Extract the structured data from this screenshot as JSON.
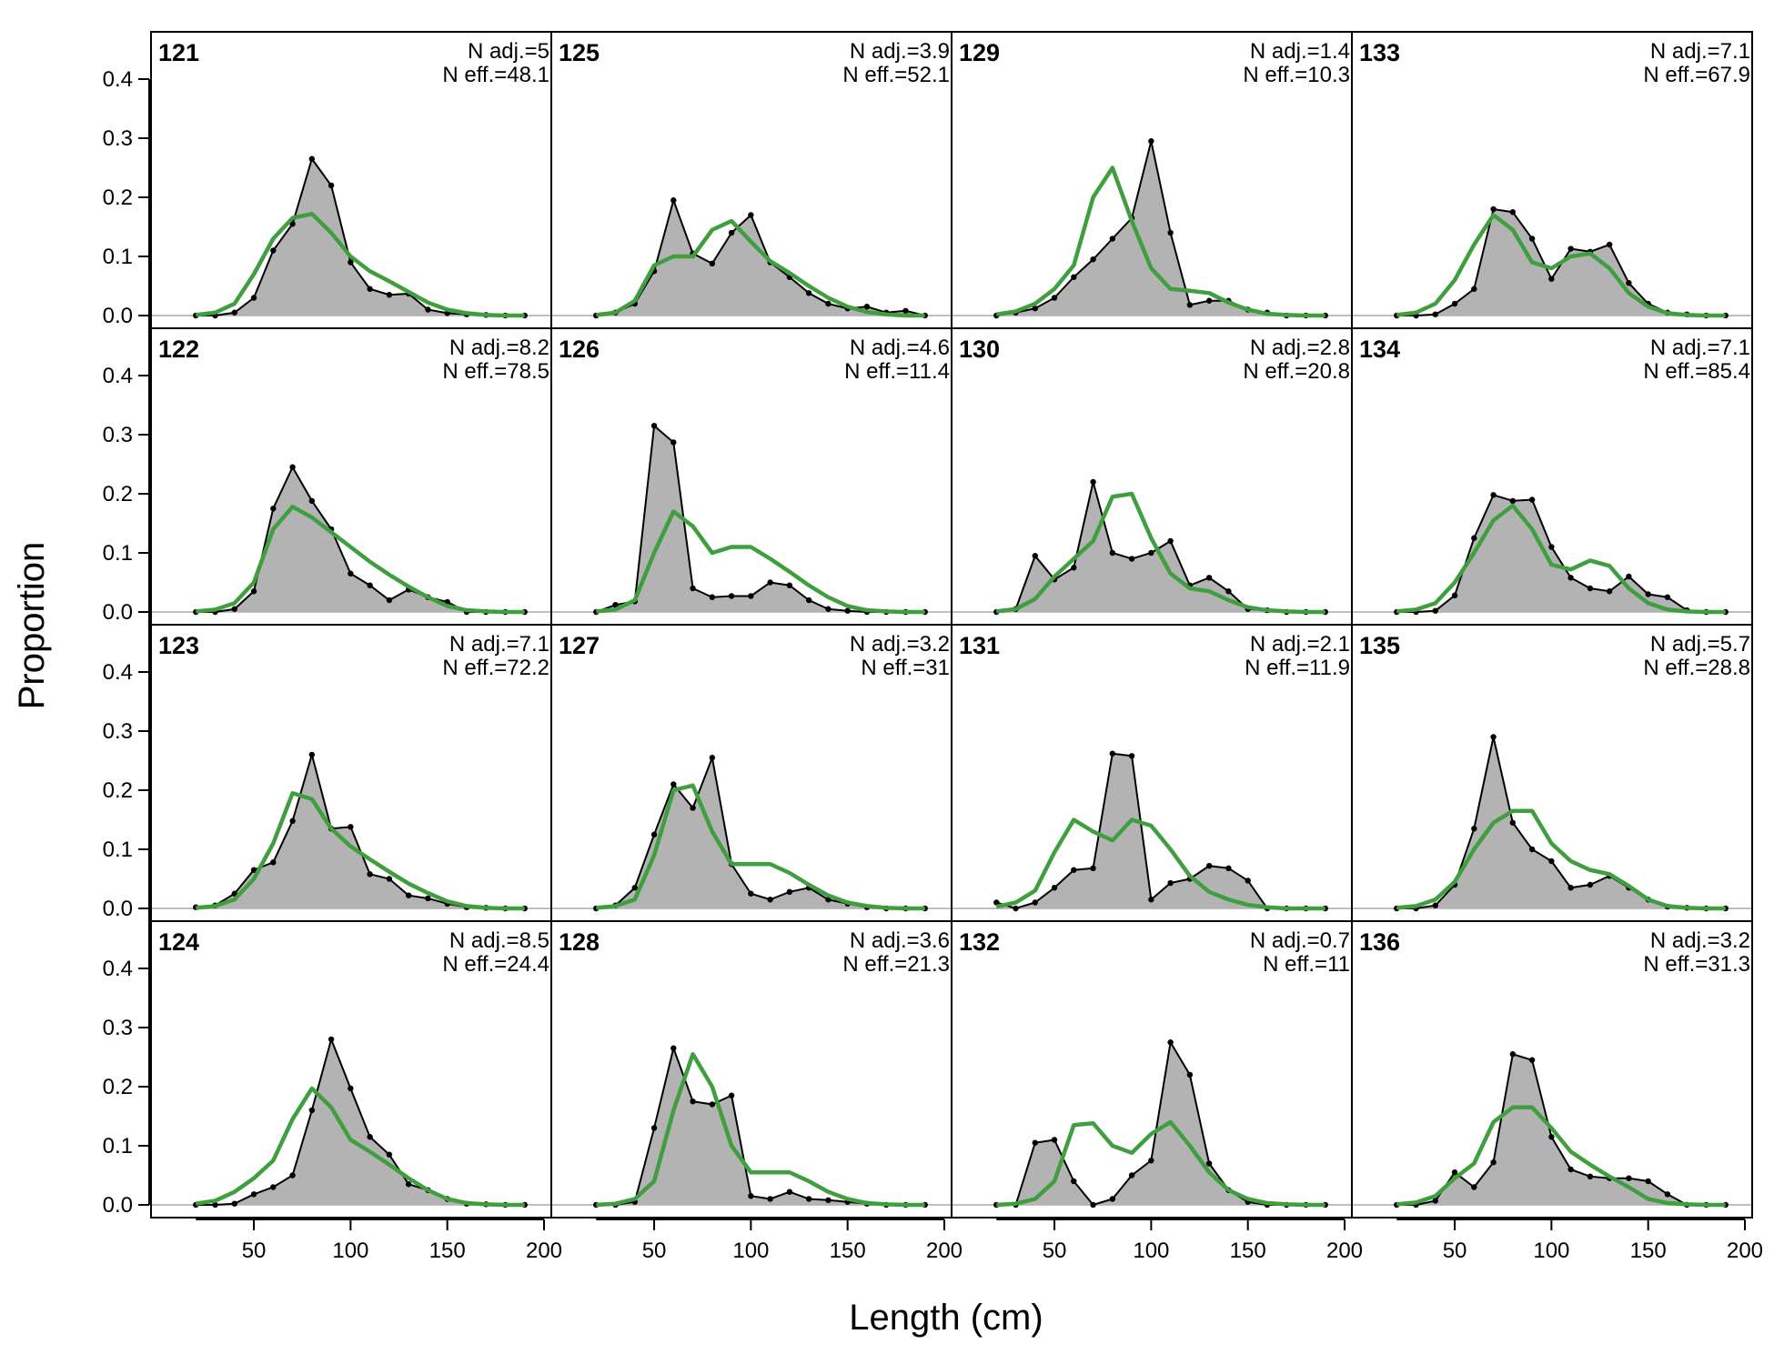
{
  "chart_data": {
    "type": "area",
    "xlabel": "Length (cm)",
    "ylabel": "Proportion",
    "xlim": [
      10,
      200
    ],
    "ylim": [
      0,
      0.48
    ],
    "x_ticks": [
      50,
      100,
      150,
      200
    ],
    "y_ticks": [
      0.0,
      0.1,
      0.2,
      0.3,
      0.4
    ],
    "y_tick_labels": [
      "0.0",
      "0.1",
      "0.2",
      "0.3",
      "0.4"
    ],
    "x": [
      20,
      30,
      40,
      50,
      60,
      70,
      80,
      90,
      100,
      110,
      120,
      130,
      140,
      150,
      160,
      170,
      180,
      190
    ],
    "series_styles": {
      "observed": {
        "fill": "#b3b3b3",
        "line": "#000000"
      },
      "expected": {
        "line": "#3f9f3f"
      }
    },
    "layout": {
      "rows": 4,
      "cols": 4,
      "order": "column-major"
    },
    "panels": [
      {
        "id": "121",
        "n_adj": "N adj.=5",
        "n_eff": "N eff.=48.1",
        "observed": [
          0,
          0,
          0.005,
          0.03,
          0.11,
          0.155,
          0.265,
          0.22,
          0.09,
          0.045,
          0.035,
          0.037,
          0.01,
          0.004,
          0.002,
          0.001,
          0,
          0
        ],
        "expected": [
          0.001,
          0.005,
          0.02,
          0.07,
          0.13,
          0.165,
          0.172,
          0.14,
          0.1,
          0.075,
          0.058,
          0.04,
          0.022,
          0.01,
          0.004,
          0.001,
          0,
          0
        ]
      },
      {
        "id": "122",
        "n_adj": "N adj.=8.2",
        "n_eff": "N eff.=78.5",
        "observed": [
          0,
          0,
          0.005,
          0.035,
          0.175,
          0.245,
          0.188,
          0.14,
          0.065,
          0.045,
          0.02,
          0.038,
          0.025,
          0.017,
          0,
          0,
          0,
          0
        ],
        "expected": [
          0.001,
          0.004,
          0.015,
          0.05,
          0.14,
          0.178,
          0.16,
          0.135,
          0.11,
          0.085,
          0.063,
          0.043,
          0.025,
          0.01,
          0.003,
          0.001,
          0,
          0
        ]
      },
      {
        "id": "123",
        "n_adj": "N adj.=7.1",
        "n_eff": "N eff.=72.2",
        "observed": [
          0.002,
          0.005,
          0.025,
          0.065,
          0.078,
          0.148,
          0.26,
          0.135,
          0.138,
          0.058,
          0.05,
          0.022,
          0.017,
          0.008,
          0.002,
          0.001,
          0,
          0
        ],
        "expected": [
          0.001,
          0.004,
          0.015,
          0.05,
          0.11,
          0.195,
          0.185,
          0.135,
          0.105,
          0.083,
          0.062,
          0.042,
          0.026,
          0.012,
          0.004,
          0.001,
          0,
          0
        ]
      },
      {
        "id": "124",
        "n_adj": "N adj.=8.5",
        "n_eff": "N eff.=24.4",
        "observed": [
          0,
          0,
          0.002,
          0.018,
          0.03,
          0.05,
          0.16,
          0.28,
          0.197,
          0.115,
          0.085,
          0.035,
          0.025,
          0.01,
          0.002,
          0.001,
          0,
          0
        ],
        "expected": [
          0.002,
          0.007,
          0.022,
          0.045,
          0.075,
          0.145,
          0.197,
          0.165,
          0.11,
          0.09,
          0.068,
          0.045,
          0.025,
          0.01,
          0.003,
          0.001,
          0,
          0
        ]
      },
      {
        "id": "125",
        "n_adj": "N adj.=3.9",
        "n_eff": "N eff.=52.1",
        "observed": [
          0,
          0.005,
          0.02,
          0.075,
          0.195,
          0.105,
          0.088,
          0.14,
          0.17,
          0.09,
          0.065,
          0.038,
          0.02,
          0.012,
          0.015,
          0.005,
          0.008,
          0
        ],
        "expected": [
          0.001,
          0.005,
          0.025,
          0.085,
          0.1,
          0.1,
          0.145,
          0.16,
          0.125,
          0.092,
          0.072,
          0.05,
          0.03,
          0.015,
          0.006,
          0.002,
          0,
          0
        ]
      },
      {
        "id": "126",
        "n_adj": "N adj.=4.6",
        "n_eff": "N eff.=11.4",
        "observed": [
          0,
          0.012,
          0.018,
          0.315,
          0.287,
          0.04,
          0.025,
          0.027,
          0.027,
          0.05,
          0.045,
          0.02,
          0.005,
          0.002,
          0,
          0,
          0,
          0
        ],
        "expected": [
          0.001,
          0.004,
          0.02,
          0.1,
          0.17,
          0.145,
          0.1,
          0.11,
          0.11,
          0.09,
          0.068,
          0.045,
          0.025,
          0.01,
          0.003,
          0.001,
          0,
          0
        ]
      },
      {
        "id": "127",
        "n_adj": "N adj.=3.2",
        "n_eff": "N eff.=31",
        "observed": [
          0,
          0.005,
          0.035,
          0.125,
          0.21,
          0.17,
          0.255,
          0.075,
          0.025,
          0.015,
          0.028,
          0.035,
          0.015,
          0.008,
          0.002,
          0,
          0,
          0
        ],
        "expected": [
          0.001,
          0.004,
          0.015,
          0.09,
          0.2,
          0.208,
          0.13,
          0.075,
          0.075,
          0.075,
          0.06,
          0.04,
          0.022,
          0.01,
          0.004,
          0.001,
          0,
          0
        ]
      },
      {
        "id": "128",
        "n_adj": "N adj.=3.6",
        "n_eff": "N eff.=21.3",
        "observed": [
          0,
          0,
          0.005,
          0.13,
          0.265,
          0.175,
          0.17,
          0.185,
          0.015,
          0.01,
          0.022,
          0.01,
          0.008,
          0.005,
          0.002,
          0,
          0,
          0
        ],
        "expected": [
          0,
          0.002,
          0.01,
          0.04,
          0.16,
          0.255,
          0.2,
          0.1,
          0.055,
          0.055,
          0.055,
          0.04,
          0.022,
          0.01,
          0.003,
          0.001,
          0,
          0
        ]
      },
      {
        "id": "129",
        "n_adj": "N adj.=1.4",
        "n_eff": "N eff.=10.3",
        "observed": [
          0,
          0.005,
          0.012,
          0.03,
          0.065,
          0.095,
          0.13,
          0.165,
          0.295,
          0.14,
          0.018,
          0.025,
          0.025,
          0.01,
          0.005,
          0,
          0,
          0
        ],
        "expected": [
          0.002,
          0.007,
          0.02,
          0.045,
          0.085,
          0.2,
          0.25,
          0.16,
          0.08,
          0.045,
          0.042,
          0.038,
          0.022,
          0.01,
          0.003,
          0.001,
          0,
          0
        ]
      },
      {
        "id": "130",
        "n_adj": "N adj.=2.8",
        "n_eff": "N eff.=20.8",
        "observed": [
          0,
          0.005,
          0.095,
          0.055,
          0.075,
          0.22,
          0.1,
          0.09,
          0.1,
          0.12,
          0.045,
          0.058,
          0.035,
          0.005,
          0.003,
          0,
          0,
          0
        ],
        "expected": [
          0.001,
          0.005,
          0.022,
          0.06,
          0.09,
          0.12,
          0.195,
          0.2,
          0.125,
          0.065,
          0.04,
          0.035,
          0.02,
          0.008,
          0.003,
          0.001,
          0,
          0
        ]
      },
      {
        "id": "131",
        "n_adj": "N adj.=2.1",
        "n_eff": "N eff.=11.9",
        "observed": [
          0.01,
          0,
          0.01,
          0.035,
          0.065,
          0.068,
          0.262,
          0.258,
          0.015,
          0.043,
          0.05,
          0.072,
          0.068,
          0.047,
          0,
          0,
          0,
          0
        ],
        "expected": [
          0.003,
          0.01,
          0.03,
          0.095,
          0.15,
          0.13,
          0.115,
          0.15,
          0.14,
          0.1,
          0.055,
          0.028,
          0.015,
          0.006,
          0.002,
          0,
          0,
          0
        ]
      },
      {
        "id": "132",
        "n_adj": "N adj.=0.7",
        "n_eff": "N eff.=11",
        "observed": [
          0,
          0,
          0.105,
          0.11,
          0.04,
          0,
          0.01,
          0.05,
          0.075,
          0.275,
          0.22,
          0.07,
          0.025,
          0.005,
          0,
          0,
          0,
          0
        ],
        "expected": [
          0,
          0.002,
          0.01,
          0.04,
          0.135,
          0.138,
          0.1,
          0.088,
          0.12,
          0.14,
          0.1,
          0.055,
          0.025,
          0.01,
          0.003,
          0.001,
          0,
          0
        ]
      },
      {
        "id": "133",
        "n_adj": "N adj.=7.1",
        "n_eff": "N eff.=67.9",
        "observed": [
          0,
          0,
          0.002,
          0.02,
          0.045,
          0.18,
          0.175,
          0.13,
          0.062,
          0.113,
          0.108,
          0.12,
          0.055,
          0.02,
          0.005,
          0.002,
          0,
          0
        ],
        "expected": [
          0.001,
          0.005,
          0.02,
          0.06,
          0.12,
          0.17,
          0.145,
          0.09,
          0.08,
          0.1,
          0.105,
          0.08,
          0.038,
          0.015,
          0.004,
          0.001,
          0,
          0
        ]
      },
      {
        "id": "134",
        "n_adj": "N adj.=7.1",
        "n_eff": "N eff.=85.4",
        "observed": [
          0,
          0,
          0.002,
          0.028,
          0.125,
          0.198,
          0.188,
          0.19,
          0.11,
          0.058,
          0.04,
          0.035,
          0.06,
          0.03,
          0.025,
          0.003,
          0,
          0
        ],
        "expected": [
          0.001,
          0.004,
          0.015,
          0.05,
          0.1,
          0.155,
          0.18,
          0.14,
          0.08,
          0.072,
          0.087,
          0.078,
          0.04,
          0.015,
          0.004,
          0.001,
          0,
          0
        ]
      },
      {
        "id": "135",
        "n_adj": "N adj.=5.7",
        "n_eff": "N eff.=28.8",
        "observed": [
          0,
          0,
          0.005,
          0.04,
          0.135,
          0.29,
          0.145,
          0.1,
          0.08,
          0.035,
          0.04,
          0.055,
          0.035,
          0.015,
          0.003,
          0.001,
          0,
          0
        ],
        "expected": [
          0.001,
          0.004,
          0.015,
          0.045,
          0.1,
          0.145,
          0.165,
          0.165,
          0.11,
          0.08,
          0.065,
          0.058,
          0.038,
          0.015,
          0.004,
          0.001,
          0,
          0
        ]
      },
      {
        "id": "136",
        "n_adj": "N adj.=3.2",
        "n_eff": "N eff.=31.3",
        "observed": [
          0,
          0,
          0.007,
          0.055,
          0.03,
          0.072,
          0.255,
          0.245,
          0.115,
          0.06,
          0.048,
          0.045,
          0.045,
          0.04,
          0.018,
          0,
          0,
          0
        ],
        "expected": [
          0.001,
          0.004,
          0.015,
          0.045,
          0.07,
          0.14,
          0.165,
          0.165,
          0.13,
          0.09,
          0.068,
          0.048,
          0.03,
          0.01,
          0.003,
          0.001,
          0,
          0
        ]
      }
    ]
  }
}
